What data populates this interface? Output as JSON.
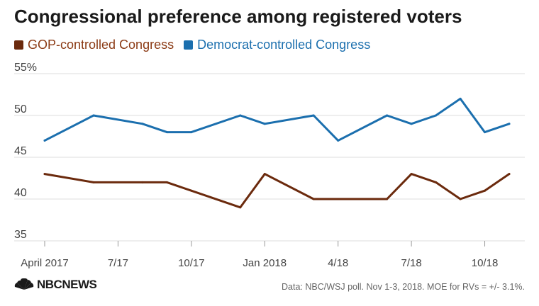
{
  "title": "Congressional preference among registered voters",
  "legend": [
    {
      "label": "GOP-controlled Congress",
      "color": "#6b2a0d"
    },
    {
      "label": "Democrat-controlled Congress",
      "color": "#1b6fae"
    }
  ],
  "source": "Data: NBC/WSJ poll. Nov 1-3, 2018. MOE for RVs = +/- 3.1%.",
  "logo_text": "NBCNEWS",
  "colors": {
    "gop": "#6b2a0d",
    "dem": "#1b6fae",
    "grid": "#dddddd",
    "axis_text": "#444444"
  },
  "chart_data": {
    "type": "line",
    "title": "Congressional preference among registered voters",
    "xlabel": "",
    "ylabel": "",
    "ylim": [
      35,
      55
    ],
    "yticks": [
      "55%",
      "50",
      "45",
      "40",
      "35"
    ],
    "xlim": [
      "2017-04",
      "2018-11"
    ],
    "xticks": [
      {
        "label": "April 2017",
        "x": "2017-04"
      },
      {
        "label": "7/17",
        "x": "2017-07"
      },
      {
        "label": "10/17",
        "x": "2017-10"
      },
      {
        "label": "Jan 2018",
        "x": "2018-01"
      },
      {
        "label": "4/18",
        "x": "2018-04"
      },
      {
        "label": "7/18",
        "x": "2018-07"
      },
      {
        "label": "10/18",
        "x": "2018-10"
      }
    ],
    "x": [
      "2017-04",
      "2017-06",
      "2017-08",
      "2017-09",
      "2017-10",
      "2017-12",
      "2018-01",
      "2018-03",
      "2018-04",
      "2018-06",
      "2018-07",
      "2018-08",
      "2018-09",
      "2018-10",
      "2018-11"
    ],
    "series": [
      {
        "name": "GOP-controlled Congress",
        "color": "#6b2a0d",
        "values": [
          43,
          42,
          42,
          42,
          41,
          39,
          43,
          40,
          40,
          40,
          43,
          42,
          40,
          41,
          43
        ]
      },
      {
        "name": "Democrat-controlled Congress",
        "color": "#1b6fae",
        "values": [
          47,
          50,
          49,
          48,
          48,
          50,
          49,
          50,
          47,
          50,
          49,
          50,
          52,
          48,
          49
        ]
      }
    ],
    "grid": true,
    "legend_position": "top-left"
  }
}
